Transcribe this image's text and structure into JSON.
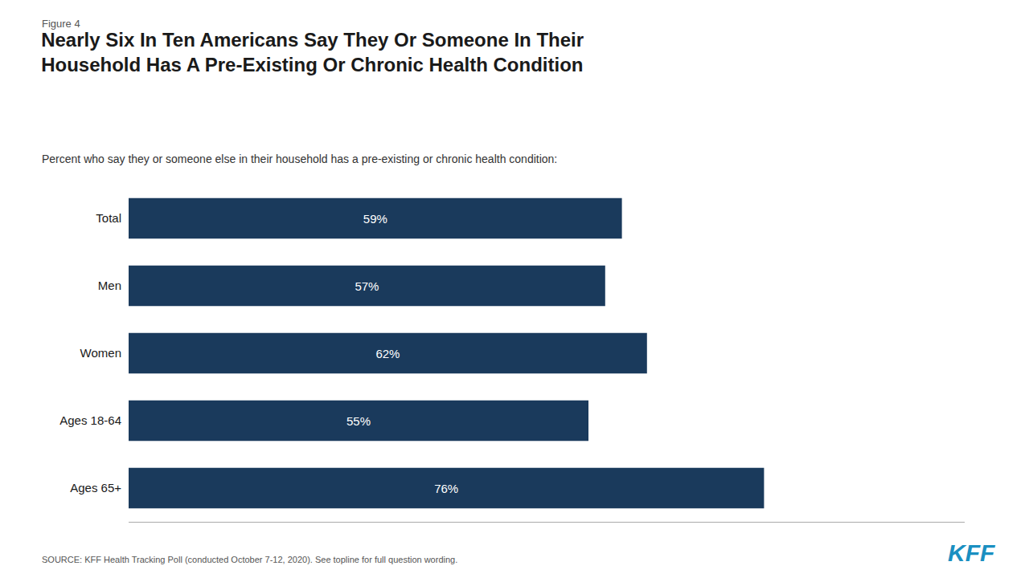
{
  "chart_data": {
    "type": "bar",
    "orientation": "horizontal",
    "title": "Nearly Six In Ten Americans Say They Or Someone In Their\nHousehold Has A Pre-Existing Or Chronic Health Condition",
    "subtitle": "Percent who say they or someone else in their household has a pre-existing or chronic health condition:",
    "annotations": [
      "Figure 4",
      "SOURCE: KFF Health Tracking Poll (conducted October 7-12, 2020). See topline for full question wording.",
      "KFF"
    ],
    "categories": [
      "Total",
      "Men",
      "Women",
      "Ages 18-64",
      "Ages 65+"
    ],
    "values": [
      59,
      57,
      62,
      55,
      76
    ],
    "value_labels": [
      "59%",
      "57%",
      "62%",
      "55%",
      "76%"
    ],
    "data_labels": true,
    "color": "#1a3a5c",
    "xlim": [
      0,
      100
    ],
    "grid": false,
    "tick_labels": "y"
  }
}
